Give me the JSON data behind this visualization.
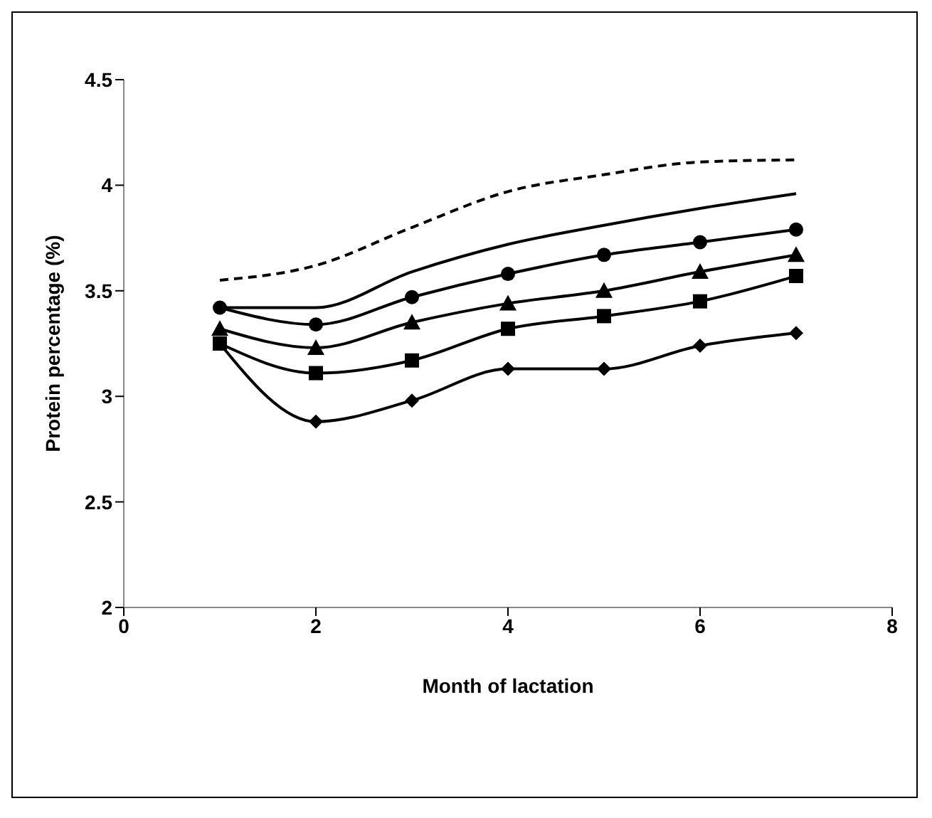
{
  "chart_data": {
    "type": "line",
    "xlabel": "Month of lactation",
    "ylabel": "Protein percentage (%)",
    "x": [
      1,
      2,
      3,
      4,
      5,
      6,
      7
    ],
    "xlim": [
      0,
      8
    ],
    "xticks": [
      0,
      2,
      4,
      6,
      8
    ],
    "ylim": [
      2,
      4.5
    ],
    "yticks": [
      2,
      2.5,
      3,
      3.5,
      4,
      4.5
    ],
    "grid": false,
    "legend": false,
    "series": [
      {
        "color": "#000000",
        "line_style": "dashed",
        "marker": "none",
        "values": [
          3.55,
          3.62,
          3.8,
          3.97,
          4.05,
          4.11,
          4.12
        ]
      },
      {
        "color": "#000000",
        "line_style": "solid",
        "marker": "none",
        "values": [
          3.42,
          3.42,
          3.59,
          3.72,
          3.81,
          3.89,
          3.96
        ]
      },
      {
        "color": "#000000",
        "line_style": "solid",
        "marker": "circle",
        "values": [
          3.42,
          3.34,
          3.47,
          3.58,
          3.67,
          3.73,
          3.79
        ]
      },
      {
        "color": "#000000",
        "line_style": "solid",
        "marker": "triangle",
        "values": [
          3.32,
          3.23,
          3.35,
          3.44,
          3.5,
          3.59,
          3.67
        ]
      },
      {
        "color": "#000000",
        "line_style": "solid",
        "marker": "square",
        "values": [
          3.25,
          3.11,
          3.17,
          3.32,
          3.38,
          3.45,
          3.57
        ]
      },
      {
        "color": "#000000",
        "line_style": "solid",
        "marker": "diamond",
        "values": [
          3.25,
          2.88,
          2.98,
          3.13,
          3.13,
          3.24,
          3.3
        ]
      }
    ]
  }
}
